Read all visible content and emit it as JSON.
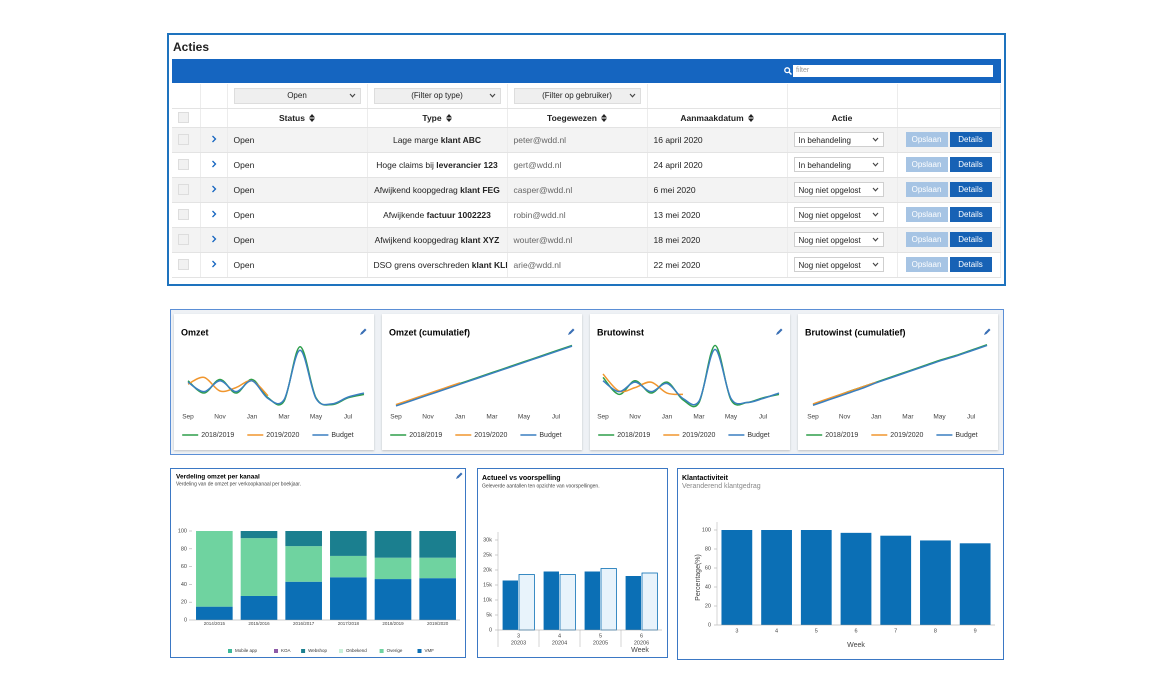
{
  "actions": {
    "title": "Acties",
    "search_placeholder": "filter",
    "filters": [
      "Open",
      "(Filter op type)",
      "(Filter op gebruiker)"
    ],
    "columns": [
      "Status",
      "Type",
      "Toegewezen",
      "Aanmaakdatum",
      "Actie"
    ],
    "rows": [
      {
        "status": "Open",
        "type": "Lage marge",
        "type_bold": "klant ABC",
        "assigned": "peter@wdd.nl",
        "date": "16 april 2020",
        "action": "In behandeling"
      },
      {
        "status": "Open",
        "type": "Hoge claims bij",
        "type_bold": "leverancier 123",
        "assigned": "gert@wdd.nl",
        "date": "24 april 2020",
        "action": "In behandeling"
      },
      {
        "status": "Open",
        "type": "Afwijkend koopgedrag",
        "type_bold": "klant FEG",
        "assigned": "casper@wdd.nl",
        "date": "6 mei 2020",
        "action": "Nog niet opgelost"
      },
      {
        "status": "Open",
        "type": "Afwijkende",
        "type_bold": "factuur 1002223",
        "assigned": "robin@wdd.nl",
        "date": "13 mei 2020",
        "action": "Nog niet opgelost"
      },
      {
        "status": "Open",
        "type": "Afwijkend koopgedrag",
        "type_bold": "klant XYZ",
        "assigned": "wouter@wdd.nl",
        "date": "18 mei 2020",
        "action": "Nog niet opgelost"
      },
      {
        "status": "Open",
        "type": "DSO grens overschreden",
        "type_bold": "klant KLM",
        "assigned": "arie@wdd.nl",
        "date": "22 mei 2020",
        "action": "Nog niet opgelost"
      }
    ],
    "buttons": {
      "save": "Opslaan",
      "details": "Details"
    }
  },
  "chart_data": [
    {
      "type": "line",
      "title": "Omzet",
      "ylim": [
        0,
        100
      ],
      "categories": [
        "Sep",
        null,
        "Nov",
        null,
        "Jan",
        null,
        "Mar",
        null,
        "May",
        null,
        "Jul",
        null
      ],
      "series": [
        {
          "name": "2018/2019",
          "color": "#2e9e4a",
          "values": [
            40,
            22,
            42,
            22,
            42,
            15,
            10,
            90,
            15,
            5,
            15,
            20
          ]
        },
        {
          "name": "2019/2020",
          "color": "#f0962e",
          "values": [
            35,
            45,
            25,
            30,
            40,
            18,
            null,
            null,
            null,
            null,
            null,
            null
          ]
        },
        {
          "name": "Budget",
          "color": "#3a7fc0",
          "values": [
            38,
            24,
            40,
            24,
            40,
            14,
            12,
            85,
            14,
            6,
            16,
            22
          ]
        }
      ]
    },
    {
      "type": "line",
      "title": "Omzet (cumulatief)",
      "ylim": [
        0,
        100
      ],
      "categories": [
        "Sep",
        null,
        "Nov",
        null,
        "Jan",
        null,
        "Mar",
        null,
        "May",
        null,
        "Jul",
        null
      ],
      "series": [
        {
          "name": "2018/2019",
          "color": "#2e9e4a",
          "values": [
            4,
            12,
            20,
            28,
            36,
            44,
            52,
            60,
            68,
            76,
            84,
            92
          ]
        },
        {
          "name": "2019/2020",
          "color": "#f0962e",
          "values": [
            5,
            13,
            21,
            29,
            37,
            null,
            null,
            null,
            null,
            null,
            null,
            null
          ]
        },
        {
          "name": "Budget",
          "color": "#3a7fc0",
          "values": [
            3,
            11,
            19,
            27,
            35,
            43,
            51,
            59,
            67,
            75,
            83,
            91
          ]
        }
      ]
    },
    {
      "type": "line",
      "title": "Brutowinst",
      "ylim": [
        0,
        100
      ],
      "categories": [
        "Sep",
        null,
        "Nov",
        null,
        "Jan",
        null,
        "Mar",
        null,
        "May",
        null,
        "Jul",
        null
      ],
      "series": [
        {
          "name": "2018/2019",
          "color": "#2e9e4a",
          "values": [
            45,
            20,
            40,
            22,
            38,
            12,
            8,
            92,
            12,
            8,
            15,
            20
          ]
        },
        {
          "name": "2019/2020",
          "color": "#f0962e",
          "values": [
            50,
            25,
            30,
            38,
            22,
            20,
            null,
            null,
            null,
            null,
            null,
            null
          ]
        },
        {
          "name": "Budget",
          "color": "#3a7fc0",
          "values": [
            40,
            24,
            38,
            24,
            36,
            14,
            10,
            86,
            14,
            8,
            14,
            22
          ]
        }
      ]
    },
    {
      "type": "line",
      "title": "Brutowinst (cumulatief)",
      "ylim": [
        0,
        100
      ],
      "categories": [
        "Sep",
        null,
        "Nov",
        null,
        "Jan",
        null,
        "Mar",
        null,
        "May",
        null,
        "Jul",
        null
      ],
      "series": [
        {
          "name": "2018/2019",
          "color": "#2e9e4a",
          "values": [
            5,
            13,
            22,
            30,
            38,
            46,
            54,
            62,
            70,
            77,
            85,
            93
          ]
        },
        {
          "name": "2019/2020",
          "color": "#f0962e",
          "values": [
            6,
            14,
            22,
            30,
            38,
            null,
            null,
            null,
            null,
            null,
            null,
            null
          ]
        },
        {
          "name": "Budget",
          "color": "#3a7fc0",
          "values": [
            4,
            12,
            20,
            28,
            37,
            45,
            53,
            61,
            69,
            76,
            84,
            92
          ]
        }
      ]
    },
    {
      "type": "stacked_bar",
      "title": "Verdeling omzet per kanaal",
      "subtitle": "Verdeling van de omzet per verkoopkanaal per boekjaar.",
      "categories": [
        "2014/2015",
        "2015/2016",
        "2016/2017",
        "2017/2018",
        "2018/2019",
        "2019/2020"
      ],
      "ylim": [
        0,
        100
      ],
      "yticks": [
        0,
        20,
        40,
        60,
        80,
        100
      ],
      "series": [
        {
          "name": "Mobile app",
          "color": "#3cb89a",
          "values": [
            0,
            0,
            0,
            0,
            0,
            0
          ]
        },
        {
          "name": "KOA",
          "color": "#8e5aa8",
          "values": [
            0,
            0,
            0,
            0,
            0,
            0
          ]
        },
        {
          "name": "Webshop",
          "color": "#1b7f8f",
          "values": [
            0,
            8,
            17,
            28,
            30,
            30
          ]
        },
        {
          "name": "Onbekend",
          "color": "#c9f0d9",
          "values": [
            0,
            0,
            0,
            0,
            0,
            0
          ]
        },
        {
          "name": "Overige",
          "color": "#6fd3a0",
          "values": [
            85,
            65,
            40,
            24,
            24,
            23
          ]
        },
        {
          "name": "VMF",
          "color": "#0b6fb5",
          "values": [
            15,
            27,
            43,
            48,
            46,
            47
          ]
        }
      ]
    },
    {
      "type": "bar",
      "title": "Actueel vs voorspelling",
      "subtitle": "Geleverde aantallen ten opzichte van voorspellingen.",
      "categories": [
        "3",
        "4",
        "5",
        "6"
      ],
      "category_groups": [
        "20203",
        "20204",
        "20205",
        "20206"
      ],
      "xlabel": "Week",
      "ylim": [
        0,
        30000
      ],
      "yticks": [
        0,
        {
          "value": 5000,
          "label": "5k"
        },
        {
          "value": 10000,
          "label": "10k"
        },
        {
          "value": 15000,
          "label": "15k"
        },
        {
          "value": 20000,
          "label": "20k"
        },
        {
          "value": 25000,
          "label": "25k"
        },
        {
          "value": 30000,
          "label": "30k"
        }
      ],
      "series": [
        {
          "color": "#0b6fb5",
          "values": [
            16500,
            19500,
            19500,
            18000
          ]
        },
        {
          "color": "#e8f3fb",
          "stroke": "#0b6fb5",
          "values": [
            18500,
            18500,
            20500,
            19000
          ]
        }
      ]
    },
    {
      "type": "bar",
      "title": "Klantactiviteit",
      "subtitle": "Veranderend klantgedrag",
      "categories": [
        "3",
        "4",
        "5",
        "6",
        "7",
        "8",
        "9"
      ],
      "xlabel": "Week",
      "ylabel": "Percentage(%)",
      "ylim": [
        0,
        100
      ],
      "yticks": [
        0,
        20,
        40,
        60,
        80,
        100
      ],
      "series": [
        {
          "color": "#0b6fb5",
          "values": [
            100,
            100,
            100,
            97,
            94,
            89,
            86
          ]
        }
      ]
    }
  ]
}
